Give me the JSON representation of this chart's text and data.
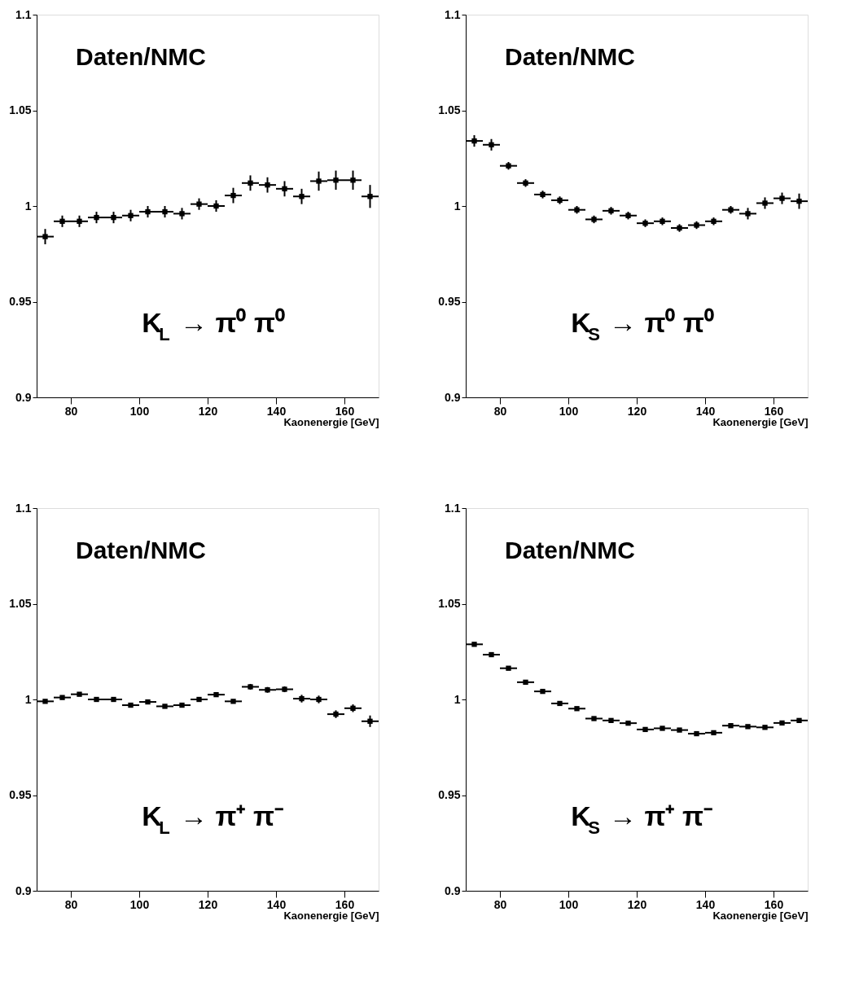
{
  "chart_data": [
    {
      "type": "scatter",
      "xlabel": "Kaonenergie [GeV]",
      "annotations": [
        "Daten/NMC",
        "K$_{L}$ → π⁰ π⁰"
      ],
      "marker": "square",
      "grid": false,
      "xlim": [
        70,
        170
      ],
      "ylim": [
        0.9,
        1.1
      ],
      "xticks": [
        80,
        100,
        120,
        140,
        160
      ],
      "yticks": [
        0.9,
        0.95,
        1,
        1.05,
        1.1
      ],
      "x": [
        72.5,
        77.5,
        82.5,
        87.5,
        92.5,
        97.5,
        102.5,
        107.5,
        112.5,
        117.5,
        122.5,
        127.5,
        132.5,
        137.5,
        142.5,
        147.5,
        152.5,
        157.5,
        162.5,
        167.5
      ],
      "series": [
        {
          "color": "#000000",
          "values": [
            0.984,
            0.992,
            0.992,
            0.994,
            0.994,
            0.995,
            0.997,
            0.997,
            0.996,
            1.001,
            1.0,
            1.0055,
            1.012,
            1.011,
            1.009,
            1.005,
            1.013,
            1.0135,
            1.0135,
            1.005
          ],
          "errors": [
            0.004,
            0.003,
            0.003,
            0.003,
            0.003,
            0.003,
            0.003,
            0.003,
            0.003,
            0.003,
            0.003,
            0.004,
            0.004,
            0.004,
            0.004,
            0.004,
            0.005,
            0.005,
            0.005,
            0.006
          ],
          "xerrors": [
            2.5,
            2.5,
            2.5,
            2.5,
            2.5,
            2.5,
            2.5,
            2.5,
            2.5,
            2.5,
            2.5,
            2.5,
            2.5,
            2.5,
            2.5,
            2.5,
            2.5,
            2.5,
            2.5,
            2.5
          ]
        }
      ]
    },
    {
      "type": "scatter",
      "xlabel": "Kaonenergie [GeV]",
      "annotations": [
        "Daten/NMC",
        "K$_{S}$ → π⁰ π⁰"
      ],
      "marker": "square",
      "grid": false,
      "xlim": [
        70,
        170
      ],
      "ylim": [
        0.9,
        1.1
      ],
      "xticks": [
        80,
        100,
        120,
        140,
        160
      ],
      "yticks": [
        0.9,
        0.95,
        1,
        1.05,
        1.1
      ],
      "x": [
        72.5,
        77.5,
        82.5,
        87.5,
        92.5,
        97.5,
        102.5,
        107.5,
        112.5,
        117.5,
        122.5,
        127.5,
        132.5,
        137.5,
        142.5,
        147.5,
        152.5,
        157.5,
        162.5,
        167.5
      ],
      "series": [
        {
          "color": "#000000",
          "values": [
            1.034,
            1.032,
            1.021,
            1.012,
            1.006,
            1.003,
            0.998,
            0.993,
            0.9975,
            0.995,
            0.991,
            0.992,
            0.9885,
            0.99,
            0.992,
            0.998,
            0.996,
            1.0015,
            1.004,
            1.0025
          ],
          "errors": [
            0.003,
            0.003,
            0.002,
            0.002,
            0.002,
            0.002,
            0.002,
            0.002,
            0.002,
            0.002,
            0.002,
            0.002,
            0.002,
            0.002,
            0.002,
            0.002,
            0.003,
            0.003,
            0.003,
            0.004
          ],
          "xerrors": [
            2.5,
            2.5,
            2.5,
            2.5,
            2.5,
            2.5,
            2.5,
            2.5,
            2.5,
            2.5,
            2.5,
            2.5,
            2.5,
            2.5,
            2.5,
            2.5,
            2.5,
            2.5,
            2.5,
            2.5
          ]
        }
      ]
    },
    {
      "type": "scatter",
      "xlabel": "Kaonenergie [GeV]",
      "annotations": [
        "Daten/NMC",
        "K$_{L}$ → π⁺ π⁻"
      ],
      "marker": "square",
      "grid": false,
      "xlim": [
        70,
        170
      ],
      "ylim": [
        0.9,
        1.1
      ],
      "xticks": [
        80,
        100,
        120,
        140,
        160
      ],
      "yticks": [
        0.9,
        0.95,
        1,
        1.05,
        1.1
      ],
      "x": [
        72.5,
        77.5,
        82.5,
        87.5,
        92.5,
        97.5,
        102.5,
        107.5,
        112.5,
        117.5,
        122.5,
        127.5,
        132.5,
        137.5,
        142.5,
        147.5,
        152.5,
        157.5,
        162.5,
        167.5
      ],
      "series": [
        {
          "color": "#000000",
          "values": [
            0.999,
            1.001,
            1.0027,
            1.0,
            1.0,
            0.997,
            0.9987,
            0.9964,
            0.997,
            1.0,
            1.0025,
            0.999,
            1.0066,
            1.005,
            1.0053,
            1.0004,
            1.0,
            0.9923,
            0.9954,
            0.9886
          ],
          "errors": [
            0.001,
            0.001,
            0.001,
            0.001,
            0.001,
            0.001,
            0.001,
            0.001,
            0.001,
            0.001,
            0.001,
            0.001,
            0.0015,
            0.0015,
            0.0015,
            0.002,
            0.002,
            0.002,
            0.002,
            0.003
          ],
          "xerrors": [
            2.5,
            2.5,
            2.5,
            2.5,
            2.5,
            2.5,
            2.5,
            2.5,
            2.5,
            2.5,
            2.5,
            2.5,
            2.5,
            2.5,
            2.5,
            2.5,
            2.5,
            2.5,
            2.5,
            2.5
          ]
        }
      ]
    },
    {
      "type": "scatter",
      "xlabel": "Kaonenergie [GeV]",
      "annotations": [
        "Daten/NMC",
        "K$_{S}$ → π⁺ π⁻"
      ],
      "marker": "square",
      "grid": false,
      "xlim": [
        70,
        170
      ],
      "ylim": [
        0.9,
        1.1
      ],
      "xticks": [
        80,
        100,
        120,
        140,
        160
      ],
      "yticks": [
        0.9,
        0.95,
        1,
        1.05,
        1.1
      ],
      "x": [
        72.5,
        77.5,
        82.5,
        87.5,
        92.5,
        97.5,
        102.5,
        107.5,
        112.5,
        117.5,
        122.5,
        127.5,
        132.5,
        137.5,
        142.5,
        147.5,
        152.5,
        157.5,
        162.5,
        167.5
      ],
      "series": [
        {
          "color": "#000000",
          "values": [
            1.0288,
            1.0234,
            1.0163,
            1.009,
            1.0042,
            0.9979,
            0.9952,
            0.99,
            0.989,
            0.9876,
            0.9843,
            0.9849,
            0.984,
            0.9821,
            0.9826,
            0.9863,
            0.9858,
            0.9854,
            0.9877,
            0.989
          ],
          "errors": [
            0.0005,
            0.0005,
            0.0005,
            0.0005,
            0.0005,
            0.0005,
            0.0005,
            0.0005,
            0.0005,
            0.0005,
            0.0005,
            0.0005,
            0.0005,
            0.0005,
            0.0005,
            0.0007,
            0.001,
            0.001,
            0.001,
            0.0012
          ],
          "xerrors": [
            2.5,
            2.5,
            2.5,
            2.5,
            2.5,
            2.5,
            2.5,
            2.5,
            2.5,
            2.5,
            2.5,
            2.5,
            2.5,
            2.5,
            2.5,
            2.5,
            2.5,
            2.5,
            2.5,
            2.5
          ]
        }
      ]
    }
  ]
}
